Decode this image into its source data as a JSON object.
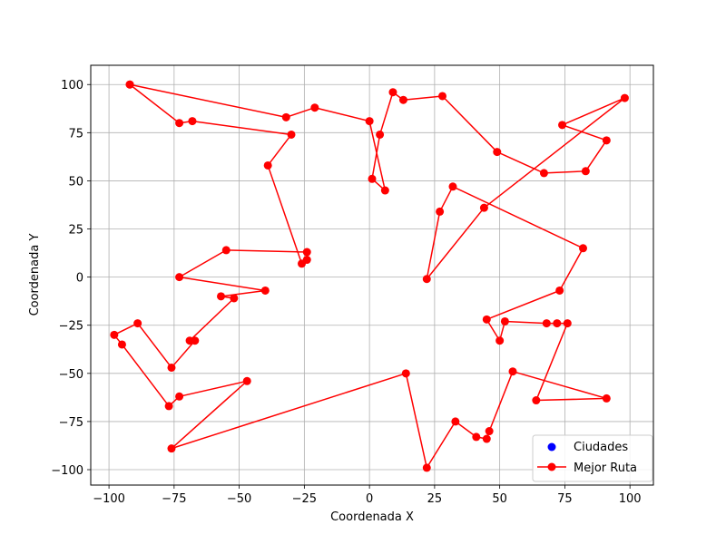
{
  "chart_data": {
    "type": "line",
    "title": "",
    "xlabel": "Coordenada X",
    "ylabel": "Coordenada Y",
    "xlim": [
      -107,
      109
    ],
    "ylim": [
      -108,
      110
    ],
    "xticks": [
      -100,
      -75,
      -50,
      -25,
      0,
      25,
      50,
      75,
      100
    ],
    "yticks": [
      -100,
      -75,
      -50,
      -25,
      0,
      25,
      50,
      75,
      100
    ],
    "grid": true,
    "legend_position": "lower-right",
    "series": [
      {
        "name": "Ciudades",
        "kind": "scatter",
        "color": "#0000ff",
        "points": []
      },
      {
        "name": "Mejor Ruta",
        "kind": "line-with-markers",
        "color": "#ff0000",
        "points": [
          [
            -92,
            100
          ],
          [
            -32,
            83
          ],
          [
            -21,
            88
          ],
          [
            0,
            81
          ],
          [
            6,
            45
          ],
          [
            1,
            51
          ],
          [
            4,
            74
          ],
          [
            9,
            96
          ],
          [
            13,
            92
          ],
          [
            28,
            94
          ],
          [
            49,
            65
          ],
          [
            67,
            54
          ],
          [
            83,
            55
          ],
          [
            91,
            71
          ],
          [
            74,
            79
          ],
          [
            98,
            93
          ],
          [
            44,
            36
          ],
          [
            22,
            -1
          ],
          [
            27,
            34
          ],
          [
            32,
            47
          ],
          [
            82,
            15
          ],
          [
            73,
            -7
          ],
          [
            45,
            -22
          ],
          [
            50,
            -33
          ],
          [
            52,
            -23
          ],
          [
            68,
            -24
          ],
          [
            72,
            -24
          ],
          [
            76,
            -24
          ],
          [
            64,
            -64
          ],
          [
            91,
            -63
          ],
          [
            55,
            -49
          ],
          [
            46,
            -80
          ],
          [
            45,
            -84
          ],
          [
            41,
            -83
          ],
          [
            33,
            -75
          ],
          [
            22,
            -99
          ],
          [
            14,
            -50
          ],
          [
            -76,
            -89
          ],
          [
            -47,
            -54
          ],
          [
            -73,
            -62
          ],
          [
            -77,
            -67
          ],
          [
            -95,
            -35
          ],
          [
            -98,
            -30
          ],
          [
            -89,
            -24
          ],
          [
            -76,
            -47
          ],
          [
            -67,
            -33
          ],
          [
            -69,
            -33
          ],
          [
            -52,
            -11
          ],
          [
            -57,
            -10
          ],
          [
            -40,
            -7
          ],
          [
            -73,
            0
          ],
          [
            -55,
            14
          ],
          [
            -24,
            13
          ],
          [
            -24,
            9
          ],
          [
            -26,
            7
          ],
          [
            -39,
            58
          ],
          [
            -30,
            74
          ],
          [
            -68,
            81
          ],
          [
            -73,
            80
          ],
          [
            -92,
            100
          ]
        ]
      }
    ]
  }
}
